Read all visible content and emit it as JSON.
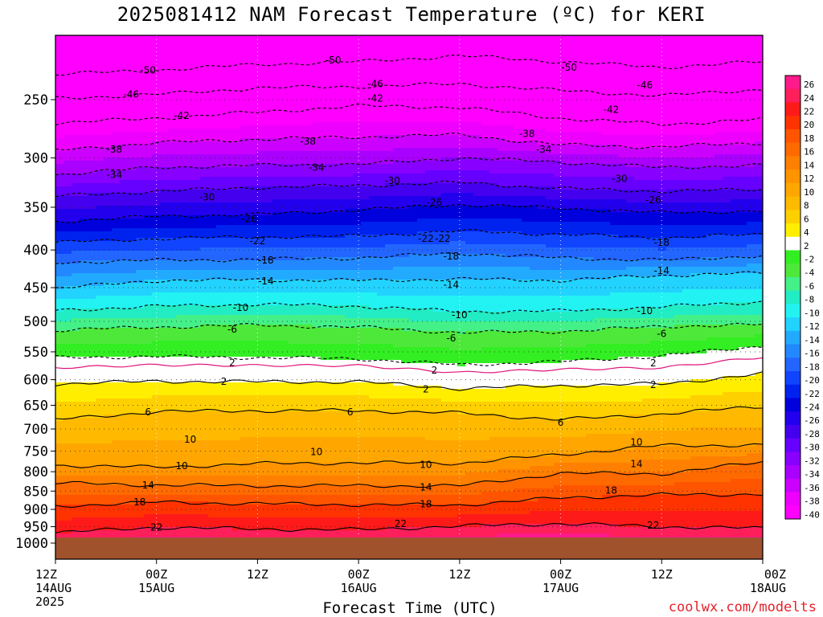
{
  "chart_data": {
    "type": "heatmap",
    "title": "2025081412 NAM Forecast Temperature (ºC) for KERI",
    "xlabel": "Forecast Time (UTC)",
    "ylabel": "",
    "credit": "coolwx.com/modelts",
    "y_axis": {
      "scale": "log",
      "inverted": true,
      "ticks": [
        250,
        300,
        350,
        400,
        450,
        500,
        550,
        600,
        650,
        700,
        750,
        800,
        850,
        900,
        950,
        1000
      ]
    },
    "x_axis": {
      "range_hours": [
        0,
        84
      ],
      "ticks": [
        {
          "hour": 0,
          "label": "12Z",
          "date": "14AUG",
          "year": "2025"
        },
        {
          "hour": 12,
          "label": "00Z",
          "date": "15AUG",
          "year": ""
        },
        {
          "hour": 24,
          "label": "12Z",
          "date": "",
          "year": ""
        },
        {
          "hour": 36,
          "label": "00Z",
          "date": "16AUG",
          "year": ""
        },
        {
          "hour": 48,
          "label": "12Z",
          "date": "",
          "year": ""
        },
        {
          "hour": 60,
          "label": "00Z",
          "date": "17AUG",
          "year": ""
        },
        {
          "hour": 72,
          "label": "12Z",
          "date": "",
          "year": ""
        },
        {
          "hour": 84,
          "label": "00Z",
          "date": "18AUG",
          "year": ""
        }
      ]
    },
    "colorbar": {
      "labels": [
        "26",
        "24",
        "22",
        "20",
        "18",
        "16",
        "14",
        "12",
        "10",
        "8",
        "6",
        "4",
        "2",
        "-2",
        "-4",
        "-6",
        "-8",
        "-10",
        "-12",
        "-14",
        "-16",
        "-18",
        "-20",
        "-22",
        "-24",
        "-26",
        "-28",
        "-30",
        "-32",
        "-34",
        "-36",
        "-38",
        "-40"
      ],
      "colors": [
        "#ff1a8c",
        "#ff1f5a",
        "#ff1a1a",
        "#ff3300",
        "#ff5500",
        "#ff6a00",
        "#ff8000",
        "#ff9400",
        "#ffa600",
        "#ffba00",
        "#ffd000",
        "#ffee00",
        "#ffffff",
        "#33ee22",
        "#4ee83a",
        "#44f088",
        "#22ecc4",
        "#22f2f2",
        "#22d2ff",
        "#22aaff",
        "#2288ff",
        "#2266ff",
        "#1144ff",
        "#0022ee",
        "#0000dd",
        "#2200ee",
        "#4400ee",
        "#6600ff",
        "#8800ff",
        "#aa00ff",
        "#cc00ff",
        "#ee00ff",
        "#ff00ff"
      ]
    },
    "isotherms": [
      {
        "temp": -50,
        "dashed": true,
        "pressure_at_hours": [
          [
            0,
            231
          ],
          [
            12,
            228
          ],
          [
            24,
            224
          ],
          [
            36,
            222
          ],
          [
            48,
            218
          ],
          [
            60,
            222
          ],
          [
            72,
            226
          ],
          [
            84,
            222
          ]
        ]
      },
      {
        "temp": -46,
        "dashed": true,
        "pressure_at_hours": [
          [
            0,
            249
          ],
          [
            12,
            246
          ],
          [
            24,
            241
          ],
          [
            36,
            240
          ],
          [
            48,
            238
          ],
          [
            60,
            243
          ],
          [
            72,
            247
          ],
          [
            84,
            242
          ]
        ]
      },
      {
        "temp": -42,
        "dashed": true,
        "pressure_at_hours": [
          [
            0,
            269
          ],
          [
            12,
            265
          ],
          [
            24,
            260
          ],
          [
            36,
            255
          ],
          [
            48,
            256
          ],
          [
            60,
            265
          ],
          [
            72,
            270
          ],
          [
            84,
            266
          ]
        ]
      },
      {
        "temp": -38,
        "dashed": true,
        "pressure_at_hours": [
          [
            0,
            293
          ],
          [
            12,
            286
          ],
          [
            24,
            283
          ],
          [
            36,
            281
          ],
          [
            48,
            279
          ],
          [
            60,
            288
          ],
          [
            72,
            290
          ],
          [
            84,
            286
          ]
        ]
      },
      {
        "temp": -34,
        "dashed": true,
        "pressure_at_hours": [
          [
            0,
            316
          ],
          [
            12,
            309
          ],
          [
            24,
            307
          ],
          [
            36,
            306
          ],
          [
            48,
            300
          ],
          [
            60,
            304
          ],
          [
            72,
            309
          ],
          [
            84,
            307
          ]
        ]
      },
      {
        "temp": -30,
        "dashed": true,
        "pressure_at_hours": [
          [
            0,
            338
          ],
          [
            12,
            333
          ],
          [
            24,
            329
          ],
          [
            36,
            327
          ],
          [
            48,
            324
          ],
          [
            60,
            330
          ],
          [
            72,
            333
          ],
          [
            84,
            331
          ]
        ]
      },
      {
        "temp": -26,
        "dashed": true,
        "pressure_at_hours": [
          [
            0,
            366
          ],
          [
            12,
            360
          ],
          [
            24,
            358
          ],
          [
            36,
            353
          ],
          [
            48,
            347
          ],
          [
            60,
            351
          ],
          [
            72,
            356
          ],
          [
            84,
            354
          ]
        ]
      },
      {
        "temp": -22,
        "dashed": true,
        "pressure_at_hours": [
          [
            0,
            391
          ],
          [
            12,
            386
          ],
          [
            24,
            384
          ],
          [
            36,
            383
          ],
          [
            48,
            377
          ],
          [
            60,
            381
          ],
          [
            72,
            385
          ],
          [
            84,
            381
          ]
        ]
      },
      {
        "temp": -18,
        "dashed": true,
        "pressure_at_hours": [
          [
            0,
            416
          ],
          [
            12,
            413
          ],
          [
            24,
            412
          ],
          [
            36,
            410
          ],
          [
            48,
            404
          ],
          [
            60,
            410
          ],
          [
            72,
            413
          ],
          [
            84,
            407
          ]
        ]
      },
      {
        "temp": -14,
        "dashed": true,
        "pressure_at_hours": [
          [
            0,
            451
          ],
          [
            12,
            440
          ],
          [
            24,
            439
          ],
          [
            36,
            440
          ],
          [
            48,
            438
          ],
          [
            60,
            440
          ],
          [
            72,
            433
          ],
          [
            84,
            430
          ]
        ]
      },
      {
        "temp": -10,
        "dashed": true,
        "pressure_at_hours": [
          [
            0,
            483
          ],
          [
            12,
            477
          ],
          [
            24,
            474
          ],
          [
            36,
            477
          ],
          [
            48,
            485
          ],
          [
            60,
            484
          ],
          [
            72,
            478
          ],
          [
            84,
            470
          ]
        ]
      },
      {
        "temp": -6,
        "dashed": true,
        "pressure_at_hours": [
          [
            0,
            514
          ],
          [
            12,
            509
          ],
          [
            24,
            506
          ],
          [
            36,
            509
          ],
          [
            48,
            518
          ],
          [
            60,
            516
          ],
          [
            72,
            508
          ],
          [
            84,
            505
          ]
        ]
      },
      {
        "temp": -2,
        "dashed": true,
        "pressure_at_hours": [
          [
            0,
            560
          ],
          [
            12,
            558
          ],
          [
            24,
            560
          ],
          [
            36,
            562
          ],
          [
            48,
            573
          ],
          [
            60,
            567
          ],
          [
            72,
            557
          ],
          [
            84,
            540
          ]
        ]
      },
      {
        "temp": 2,
        "dashed": false,
        "pressure_at_hours": [
          [
            0,
            608
          ],
          [
            12,
            603
          ],
          [
            24,
            604
          ],
          [
            36,
            604
          ],
          [
            48,
            617
          ],
          [
            60,
            611
          ],
          [
            72,
            608
          ],
          [
            84,
            589
          ]
        ]
      },
      {
        "temp": 6,
        "dashed": false,
        "pressure_at_hours": [
          [
            0,
            680
          ],
          [
            12,
            663
          ],
          [
            24,
            661
          ],
          [
            36,
            661
          ],
          [
            48,
            666
          ],
          [
            60,
            680
          ],
          [
            72,
            668
          ],
          [
            84,
            652
          ]
        ]
      },
      {
        "temp": 10,
        "dashed": false,
        "pressure_at_hours": [
          [
            0,
            784
          ],
          [
            12,
            789
          ],
          [
            24,
            780
          ],
          [
            36,
            778
          ],
          [
            48,
            779
          ],
          [
            60,
            758
          ],
          [
            72,
            737
          ],
          [
            84,
            736
          ]
        ]
      },
      {
        "temp": 14,
        "dashed": false,
        "pressure_at_hours": [
          [
            0,
            829
          ],
          [
            12,
            834
          ],
          [
            24,
            836
          ],
          [
            36,
            836
          ],
          [
            48,
            836
          ],
          [
            60,
            804
          ],
          [
            72,
            805
          ],
          [
            84,
            776
          ]
        ]
      },
      {
        "temp": 18,
        "dashed": false,
        "pressure_at_hours": [
          [
            0,
            891
          ],
          [
            12,
            880
          ],
          [
            24,
            884
          ],
          [
            36,
            887
          ],
          [
            48,
            888
          ],
          [
            60,
            868
          ],
          [
            72,
            860
          ],
          [
            84,
            858
          ]
        ]
      },
      {
        "temp": 22,
        "dashed": false,
        "pressure_at_hours": [
          [
            0,
            968
          ],
          [
            12,
            952
          ],
          [
            24,
            957
          ],
          [
            36,
            959
          ],
          [
            48,
            948
          ],
          [
            60,
            941
          ],
          [
            72,
            950
          ],
          [
            84,
            955
          ]
        ]
      }
    ],
    "contour_labels": [
      {
        "text": "-50",
        "hour": 11,
        "pressure": 228
      },
      {
        "text": "-50",
        "hour": 33,
        "pressure": 221
      },
      {
        "text": "-50",
        "hour": 61,
        "pressure": 226
      },
      {
        "text": "-46",
        "hour": 9,
        "pressure": 246
      },
      {
        "text": "-46",
        "hour": 38,
        "pressure": 238
      },
      {
        "text": "-46",
        "hour": 70,
        "pressure": 239
      },
      {
        "text": "-42",
        "hour": 15,
        "pressure": 263
      },
      {
        "text": "-42",
        "hour": 38,
        "pressure": 249
      },
      {
        "text": "-42",
        "hour": 66,
        "pressure": 258
      },
      {
        "text": "-38",
        "hour": 7,
        "pressure": 292
      },
      {
        "text": "-38",
        "hour": 30,
        "pressure": 285
      },
      {
        "text": "-38",
        "hour": 56,
        "pressure": 278
      },
      {
        "text": "-34",
        "hour": 7,
        "pressure": 316
      },
      {
        "text": "-34",
        "hour": 31,
        "pressure": 309
      },
      {
        "text": "-34",
        "hour": 58,
        "pressure": 292
      },
      {
        "text": "-30",
        "hour": 18,
        "pressure": 339
      },
      {
        "text": "-30",
        "hour": 40,
        "pressure": 322
      },
      {
        "text": "-30",
        "hour": 67,
        "pressure": 320
      },
      {
        "text": "-26",
        "hour": 23,
        "pressure": 363
      },
      {
        "text": "-26",
        "hour": 45,
        "pressure": 345
      },
      {
        "text": "-26",
        "hour": 71,
        "pressure": 342
      },
      {
        "text": "-22",
        "hour": 24,
        "pressure": 389
      },
      {
        "text": "-22",
        "hour": 46,
        "pressure": 386
      },
      {
        "text": "-22",
        "hour": 44,
        "pressure": 386
      },
      {
        "text": "-18",
        "hour": 25,
        "pressure": 413
      },
      {
        "text": "-18",
        "hour": 47,
        "pressure": 408
      },
      {
        "text": "-18",
        "hour": 72,
        "pressure": 391
      },
      {
        "text": "-14",
        "hour": 25,
        "pressure": 441
      },
      {
        "text": "-14",
        "hour": 47,
        "pressure": 446
      },
      {
        "text": "-14",
        "hour": 72,
        "pressure": 427
      },
      {
        "text": "-10",
        "hour": 22,
        "pressure": 479
      },
      {
        "text": "-10",
        "hour": 48,
        "pressure": 490
      },
      {
        "text": "-10",
        "hour": 70,
        "pressure": 484
      },
      {
        "text": "-6",
        "hour": 21,
        "pressure": 513
      },
      {
        "text": "-6",
        "hour": 47,
        "pressure": 527
      },
      {
        "text": "-6",
        "hour": 72,
        "pressure": 520
      },
      {
        "text": "2",
        "hour": 21,
        "pressure": 569
      },
      {
        "text": "2",
        "hour": 45,
        "pressure": 583
      },
      {
        "text": "2",
        "hour": 71,
        "pressure": 570
      },
      {
        "text": "2",
        "hour": 20,
        "pressure": 604
      },
      {
        "text": "2",
        "hour": 44,
        "pressure": 618
      },
      {
        "text": "2",
        "hour": 71,
        "pressure": 610
      },
      {
        "text": "6",
        "hour": 11,
        "pressure": 664
      },
      {
        "text": "6",
        "hour": 35,
        "pressure": 664
      },
      {
        "text": "6",
        "hour": 60,
        "pressure": 686
      },
      {
        "text": "10",
        "hour": 16,
        "pressure": 723
      },
      {
        "text": "10",
        "hour": 31,
        "pressure": 752
      },
      {
        "text": "10",
        "hour": 44,
        "pressure": 783
      },
      {
        "text": "10",
        "hour": 15,
        "pressure": 786
      },
      {
        "text": "10",
        "hour": 69,
        "pressure": 730
      },
      {
        "text": "14",
        "hour": 11,
        "pressure": 835
      },
      {
        "text": "14",
        "hour": 44,
        "pressure": 840
      },
      {
        "text": "14",
        "hour": 69,
        "pressure": 781
      },
      {
        "text": "18",
        "hour": 10,
        "pressure": 880
      },
      {
        "text": "18",
        "hour": 44,
        "pressure": 885
      },
      {
        "text": "18",
        "hour": 66,
        "pressure": 848
      },
      {
        "text": "22",
        "hour": 12,
        "pressure": 952
      },
      {
        "text": "22",
        "hour": 41,
        "pressure": 942
      },
      {
        "text": "22",
        "hour": 71,
        "pressure": 946
      }
    ],
    "surface_fill_color": "#a0522d"
  }
}
